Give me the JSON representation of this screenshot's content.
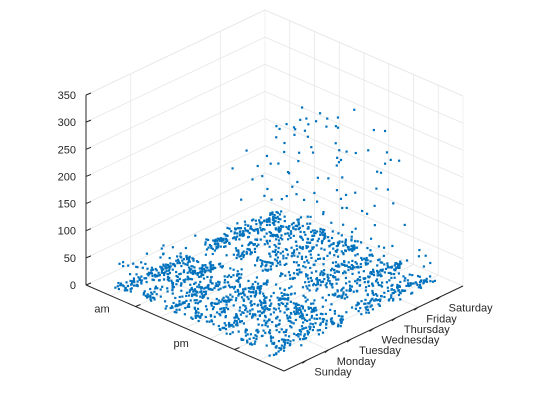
{
  "chart_data": {
    "type": "scatter",
    "dimension": "3d",
    "marker_color": "#0072bd",
    "grid": true,
    "z_axis": {
      "ticks": [
        0,
        50,
        100,
        150,
        200,
        250,
        300,
        350
      ],
      "tick_labels": [
        "0",
        "50",
        "100",
        "150",
        "200",
        "250",
        "300",
        "350"
      ],
      "lim": [
        0,
        350
      ]
    },
    "day_axis": {
      "categories": [
        "Sunday",
        "Monday",
        "Tuesday",
        "Wednesday",
        "Thursday",
        "Friday",
        "Saturday"
      ]
    },
    "period_axis": {
      "categories": [
        "am",
        "pm"
      ]
    },
    "series": [
      {
        "period": "am",
        "day": "Sunday",
        "peak": 50,
        "typical_max": 12
      },
      {
        "period": "am",
        "day": "Monday",
        "peak": 50,
        "typical_max": 25
      },
      {
        "period": "am",
        "day": "Tuesday",
        "peak": 55,
        "typical_max": 30
      },
      {
        "period": "am",
        "day": "Wednesday",
        "peak": 60,
        "typical_max": 35
      },
      {
        "period": "am",
        "day": "Thursday",
        "peak": 75,
        "typical_max": 40
      },
      {
        "period": "am",
        "day": "Friday",
        "peak": 70,
        "typical_max": 40
      },
      {
        "period": "am",
        "day": "Saturday",
        "peak": 80,
        "typical_max": 45
      },
      {
        "period": "pm",
        "day": "Sunday",
        "peak": 15,
        "typical_max": 8
      },
      {
        "period": "pm",
        "day": "Monday",
        "peak": 205,
        "typical_max": 30
      },
      {
        "period": "pm",
        "day": "Tuesday",
        "peak": 265,
        "typical_max": 35
      },
      {
        "period": "pm",
        "day": "Wednesday",
        "peak": 290,
        "typical_max": 40
      },
      {
        "period": "pm",
        "day": "Thursday",
        "peak": 290,
        "typical_max": 40
      },
      {
        "period": "pm",
        "day": "Friday",
        "peak": 260,
        "typical_max": 35
      },
      {
        "period": "pm",
        "day": "Saturday",
        "peak": 60,
        "typical_max": 20
      }
    ]
  }
}
